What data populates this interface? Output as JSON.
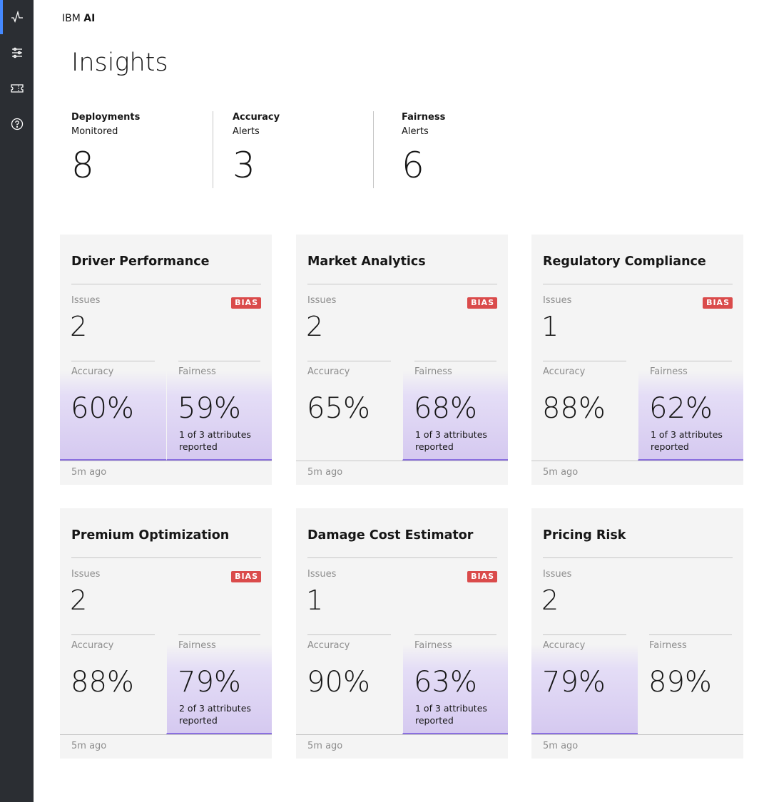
{
  "brand": {
    "prefix": "IBM",
    "name": "AI"
  },
  "page_title": "Insights",
  "sidebar": {
    "items": [
      {
        "icon": "activity-icon",
        "active": true
      },
      {
        "icon": "sliders-icon",
        "active": false
      },
      {
        "icon": "ticket-icon",
        "active": false
      },
      {
        "icon": "help-icon",
        "active": false
      }
    ]
  },
  "stats": [
    {
      "label1": "Deployments",
      "label2": "Monitored",
      "value": "8"
    },
    {
      "label1": "Accuracy",
      "label2": "Alerts",
      "value": "3"
    },
    {
      "label1": "Fairness",
      "label2": "Alerts",
      "value": "6"
    }
  ],
  "labels": {
    "issues": "Issues",
    "accuracy": "Accuracy",
    "fairness": "Fairness",
    "bias": "BIAS"
  },
  "cards": [
    {
      "title": "Driver Performance",
      "issues": "2",
      "bias": true,
      "accuracy": "60%",
      "fairness": "59%",
      "fairness_note": "1 of 3 attributes reported",
      "highlight": [
        "accuracy",
        "fairness"
      ],
      "time": "5m ago"
    },
    {
      "title": "Market Analytics",
      "issues": "2",
      "bias": true,
      "accuracy": "65%",
      "fairness": "68%",
      "fairness_note": "1 of 3 attributes reported",
      "highlight": [
        "fairness"
      ],
      "time": "5m ago"
    },
    {
      "title": "Regulatory Compliance",
      "issues": "1",
      "bias": true,
      "accuracy": "88%",
      "fairness": "62%",
      "fairness_note": "1 of 3 attributes reported",
      "highlight": [
        "fairness"
      ],
      "time": "5m ago"
    },
    {
      "title": "Premium Optimization",
      "issues": "2",
      "bias": true,
      "accuracy": "88%",
      "fairness": "79%",
      "fairness_note": "2 of 3 attributes reported",
      "highlight": [
        "fairness"
      ],
      "time": "5m ago"
    },
    {
      "title": "Damage Cost Estimator",
      "issues": "1",
      "bias": true,
      "accuracy": "90%",
      "fairness": "63%",
      "fairness_note": "1 of 3 attributes reported",
      "highlight": [
        "fairness"
      ],
      "time": "5m ago"
    },
    {
      "title": "Pricing Risk",
      "issues": "2",
      "bias": false,
      "accuracy": "79%",
      "fairness": "89%",
      "fairness_note": "",
      "highlight": [
        "accuracy"
      ],
      "time": "5m ago"
    }
  ]
}
